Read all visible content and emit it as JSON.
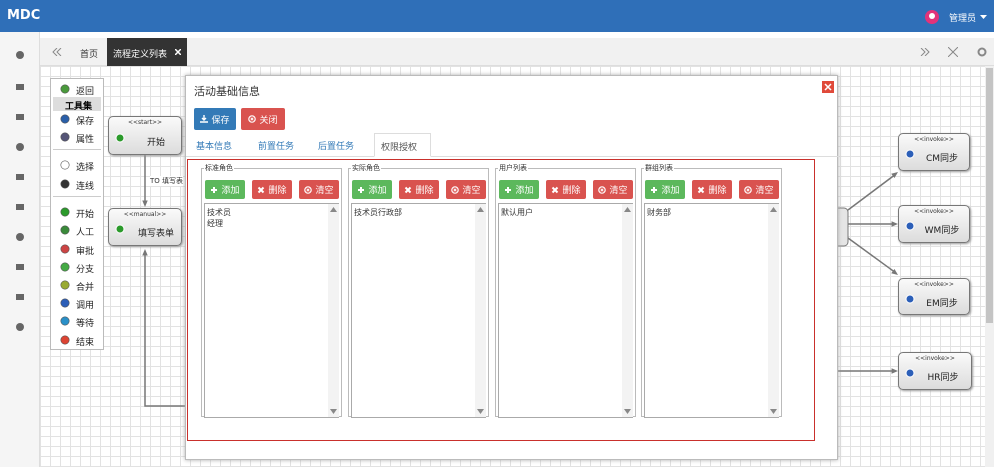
{
  "header": {
    "logo": "MDC",
    "user": "管理员"
  },
  "tabs": [
    {
      "label": "首页"
    },
    {
      "label": "流程定义列表"
    }
  ],
  "toolbox": {
    "items": [
      "返回",
      "工具集",
      "保存",
      "属性",
      "选择",
      "连线",
      "开始",
      "人工",
      "审批",
      "分支",
      "合并",
      "调用",
      "等待",
      "结束"
    ]
  },
  "canvas": {
    "edge_label": "TO 填写表",
    "nodes": [
      {
        "stereotype": "<<start>>",
        "label": "开始"
      },
      {
        "stereotype": "<<manual>>",
        "label": "填写表单"
      },
      {
        "stereotype": "<<invoke>>",
        "label": "CM同步"
      },
      {
        "stereotype": "<<invoke>>",
        "label": "WM同步"
      },
      {
        "stereotype": "<<invoke>>",
        "label": "EM同步"
      },
      {
        "stereotype": "<<invoke>>",
        "label": "HR同步"
      }
    ]
  },
  "dialog": {
    "title": "活动基础信息",
    "buttons": [
      "保存",
      "关闭"
    ],
    "tabs": [
      "基本信息",
      "前置任务",
      "后置任务",
      "权限授权"
    ],
    "active_tab": 3,
    "groups": [
      {
        "legend": "标准角色",
        "buttons": [
          "添加",
          "删除",
          "清空"
        ],
        "items": [
          "技术员",
          "经理"
        ]
      },
      {
        "legend": "实际角色",
        "buttons": [
          "添加",
          "删除",
          "清空"
        ],
        "items": [
          "技术员行政部"
        ]
      },
      {
        "legend": "用户列表",
        "buttons": [
          "添加",
          "删除",
          "清空"
        ],
        "items": [
          "默认用户"
        ]
      },
      {
        "legend": "群组列表",
        "buttons": [
          "添加",
          "删除",
          "清空"
        ],
        "items": [
          "财务部"
        ]
      }
    ]
  }
}
